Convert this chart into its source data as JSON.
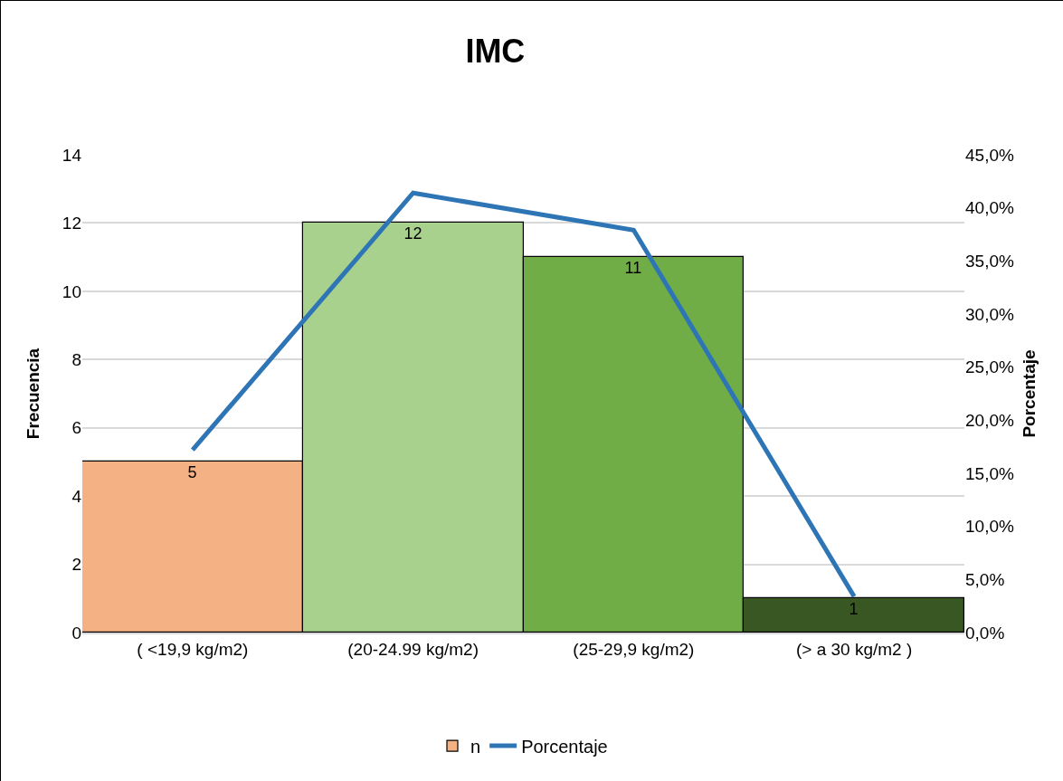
{
  "chart_data": {
    "type": "bar",
    "title": "IMC",
    "ylabel": "Frecuencia",
    "y2label": "Porcentaje",
    "categories": [
      "( <19,9 kg/m2)",
      "(20-24.99 kg/m2)",
      "(25-29,9 kg/m2)",
      "(> a 30 kg/m2 )"
    ],
    "series": [
      {
        "name": "n",
        "colors": [
          "#f4b183",
          "#a9d18e",
          "#70ad47",
          "#385723"
        ],
        "values": [
          5,
          12,
          11,
          1
        ],
        "data_labels": true
      },
      {
        "name": "Porcentaje",
        "type": "line",
        "color": "#2e75b6",
        "axis": "y2",
        "values": [
          17.2,
          41.4,
          37.9,
          3.4
        ]
      }
    ],
    "ylim": [
      0,
      14
    ],
    "yticks": [
      0,
      2,
      4,
      6,
      8,
      10,
      12,
      14
    ],
    "y2lim": [
      0,
      45
    ],
    "y2ticks": [
      {
        "value": 0,
        "label": "0,0%"
      },
      {
        "value": 5,
        "label": "5,0%"
      },
      {
        "value": 10,
        "label": "10,0%"
      },
      {
        "value": 15,
        "label": "15,0%"
      },
      {
        "value": 20,
        "label": "20,0%"
      },
      {
        "value": 25,
        "label": "25,0%"
      },
      {
        "value": 30,
        "label": "30,0%"
      },
      {
        "value": 35,
        "label": "35,0%"
      },
      {
        "value": 40,
        "label": "40,0%"
      },
      {
        "value": 45,
        "label": "45,0%"
      }
    ],
    "grid": "y",
    "legend": "bottom",
    "marker": "none",
    "line_style": "solid"
  }
}
